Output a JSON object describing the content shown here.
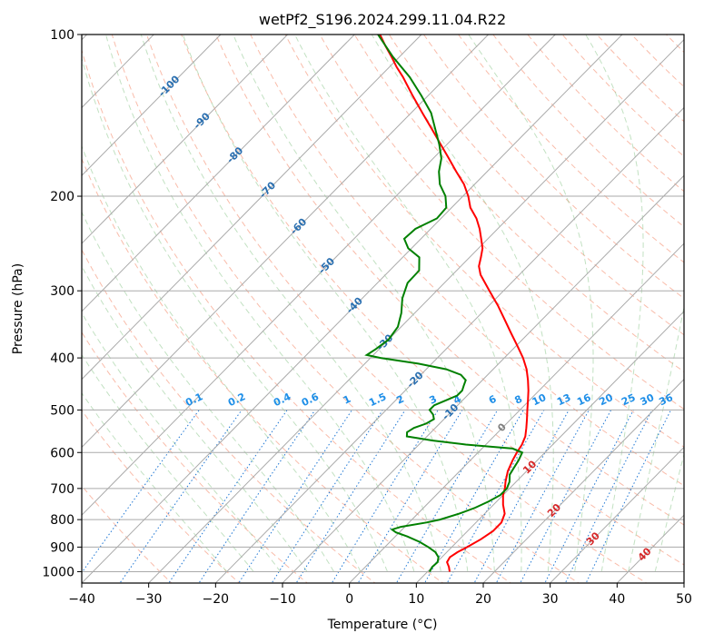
{
  "chart_data": {
    "type": "line",
    "chart_kind": "skew-T log-P diagram",
    "title": "wetPf2_S196.2024.299.11.04.R22",
    "xlabel": "Temperature (°C)",
    "ylabel": "Pressure (hPa)",
    "xlim": [
      -40,
      50
    ],
    "ylim": [
      1050,
      100
    ],
    "y_scale": "log",
    "grid": true,
    "x_ticks": [
      -40,
      -30,
      -20,
      -10,
      0,
      10,
      20,
      30,
      40,
      50
    ],
    "x_tick_labels": [
      "−40",
      "−30",
      "−20",
      "−10",
      "0",
      "10",
      "20",
      "30",
      "40",
      "50"
    ],
    "y_ticks": [
      100,
      200,
      300,
      400,
      500,
      600,
      700,
      800,
      900,
      1000
    ],
    "y_tick_labels": [
      "100",
      "200",
      "300",
      "400",
      "500",
      "600",
      "700",
      "800",
      "900",
      "1000"
    ],
    "isotherm_labels": [
      "-100",
      "-90",
      "-80",
      "-70",
      "-60",
      "-50",
      "-40",
      "-30",
      "-20",
      "-10",
      "0",
      "10",
      "20",
      "30",
      "40"
    ],
    "mixing_ratio_labels": [
      "0.1",
      "0.2",
      "0.4",
      "0.6",
      "1",
      "1.5",
      "2",
      "3",
      "4",
      "6",
      "8",
      "10",
      "13",
      "16",
      "20",
      "25",
      "30",
      "36"
    ],
    "series": [
      {
        "color": "#ff0000",
        "points": [
          {
            "p": 1000,
            "t": 13.3
          },
          {
            "p": 980,
            "t": 12.5
          },
          {
            "p": 960,
            "t": 11.5
          },
          {
            "p": 940,
            "t": 11.2
          },
          {
            "p": 920,
            "t": 11.6
          },
          {
            "p": 900,
            "t": 12.3
          },
          {
            "p": 870,
            "t": 13.2
          },
          {
            "p": 840,
            "t": 13.8
          },
          {
            "p": 810,
            "t": 13.8
          },
          {
            "p": 780,
            "t": 13.0
          },
          {
            "p": 750,
            "t": 11.4
          },
          {
            "p": 720,
            "t": 10.0
          },
          {
            "p": 700,
            "t": 9.3
          },
          {
            "p": 680,
            "t": 8.4
          },
          {
            "p": 650,
            "t": 7.2
          },
          {
            "p": 620,
            "t": 6.3
          },
          {
            "p": 600,
            "t": 5.8
          },
          {
            "p": 580,
            "t": 5.4
          },
          {
            "p": 560,
            "t": 4.7
          },
          {
            "p": 540,
            "t": 3.6
          },
          {
            "p": 520,
            "t": 2.4
          },
          {
            "p": 500,
            "t": 1.1
          },
          {
            "p": 480,
            "t": -0.2
          },
          {
            "p": 460,
            "t": -1.6
          },
          {
            "p": 440,
            "t": -3.2
          },
          {
            "p": 420,
            "t": -5.0
          },
          {
            "p": 400,
            "t": -7.2
          },
          {
            "p": 380,
            "t": -9.8
          },
          {
            "p": 360,
            "t": -12.6
          },
          {
            "p": 340,
            "t": -15.5
          },
          {
            "p": 320,
            "t": -18.6
          },
          {
            "p": 300,
            "t": -22.1
          },
          {
            "p": 280,
            "t": -25.8
          },
          {
            "p": 270,
            "t": -27.3
          },
          {
            "p": 260,
            "t": -28.3
          },
          {
            "p": 250,
            "t": -29.4
          },
          {
            "p": 240,
            "t": -31.0
          },
          {
            "p": 230,
            "t": -32.7
          },
          {
            "p": 220,
            "t": -34.7
          },
          {
            "p": 210,
            "t": -37.2
          },
          {
            "p": 200,
            "t": -39.2
          },
          {
            "p": 190,
            "t": -41.6
          },
          {
            "p": 180,
            "t": -44.6
          },
          {
            "p": 170,
            "t": -47.7
          },
          {
            "p": 160,
            "t": -51.0
          },
          {
            "p": 150,
            "t": -54.5
          },
          {
            "p": 140,
            "t": -58.3
          },
          {
            "p": 130,
            "t": -62.3
          },
          {
            "p": 120,
            "t": -66.5
          },
          {
            "p": 115,
            "t": -68.9
          },
          {
            "p": 110,
            "t": -71.2
          },
          {
            "p": 105,
            "t": -73.7
          },
          {
            "p": 100,
            "t": -76.2
          }
        ]
      },
      {
        "color": "#008000",
        "points": [
          {
            "p": 1000,
            "t": 10.3
          },
          {
            "p": 980,
            "t": 10.0
          },
          {
            "p": 960,
            "t": 10.1
          },
          {
            "p": 940,
            "t": 9.5
          },
          {
            "p": 920,
            "t": 8.3
          },
          {
            "p": 900,
            "t": 6.5
          },
          {
            "p": 880,
            "t": 4.4
          },
          {
            "p": 860,
            "t": 1.8
          },
          {
            "p": 845,
            "t": -0.5
          },
          {
            "p": 835,
            "t": -1.5
          },
          {
            "p": 825,
            "t": -0.6
          },
          {
            "p": 810,
            "t": 2.6
          },
          {
            "p": 800,
            "t": 4.2
          },
          {
            "p": 780,
            "t": 6.2
          },
          {
            "p": 760,
            "t": 7.7
          },
          {
            "p": 740,
            "t": 8.8
          },
          {
            "p": 720,
            "t": 9.6
          },
          {
            "p": 700,
            "t": 9.6
          },
          {
            "p": 680,
            "t": 9.0
          },
          {
            "p": 660,
            "t": 8.0
          },
          {
            "p": 640,
            "t": 7.6
          },
          {
            "p": 620,
            "t": 7.2
          },
          {
            "p": 600,
            "t": 6.6
          },
          {
            "p": 590,
            "t": 4.6
          },
          {
            "p": 580,
            "t": -3.0
          },
          {
            "p": 570,
            "t": -8.5
          },
          {
            "p": 560,
            "t": -13.0
          },
          {
            "p": 550,
            "t": -13.6
          },
          {
            "p": 540,
            "t": -13.2
          },
          {
            "p": 530,
            "t": -12.0
          },
          {
            "p": 520,
            "t": -11.5
          },
          {
            "p": 510,
            "t": -12.3
          },
          {
            "p": 500,
            "t": -13.5
          },
          {
            "p": 490,
            "t": -13.5
          },
          {
            "p": 480,
            "t": -12.5
          },
          {
            "p": 470,
            "t": -11.5
          },
          {
            "p": 460,
            "t": -11.5
          },
          {
            "p": 450,
            "t": -12.0
          },
          {
            "p": 440,
            "t": -12.5
          },
          {
            "p": 430,
            "t": -14.0
          },
          {
            "p": 420,
            "t": -17.0
          },
          {
            "p": 410,
            "t": -22.0
          },
          {
            "p": 400,
            "t": -28.5
          },
          {
            "p": 395,
            "t": -31.0
          },
          {
            "p": 385,
            "t": -30.5
          },
          {
            "p": 370,
            "t": -30.0
          },
          {
            "p": 350,
            "t": -30.5
          },
          {
            "p": 330,
            "t": -32.0
          },
          {
            "p": 310,
            "t": -34.0
          },
          {
            "p": 290,
            "t": -35.5
          },
          {
            "p": 275,
            "t": -35.6
          },
          {
            "p": 260,
            "t": -37.5
          },
          {
            "p": 250,
            "t": -40.5
          },
          {
            "p": 240,
            "t": -42.5
          },
          {
            "p": 230,
            "t": -42.3
          },
          {
            "p": 220,
            "t": -40.6
          },
          {
            "p": 210,
            "t": -40.8
          },
          {
            "p": 200,
            "t": -42.6
          },
          {
            "p": 190,
            "t": -45.2
          },
          {
            "p": 180,
            "t": -47.2
          },
          {
            "p": 170,
            "t": -48.8
          },
          {
            "p": 160,
            "t": -51.2
          },
          {
            "p": 150,
            "t": -54.0
          },
          {
            "p": 140,
            "t": -57.0
          },
          {
            "p": 130,
            "t": -61.0
          },
          {
            "p": 120,
            "t": -65.5
          },
          {
            "p": 110,
            "t": -71.0
          },
          {
            "p": 100,
            "t": -76.5
          }
        ]
      }
    ]
  }
}
